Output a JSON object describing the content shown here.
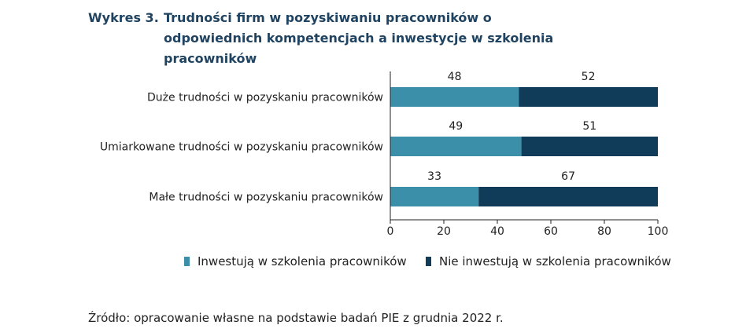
{
  "title": {
    "prefix": "Wykres 3.",
    "text": "Trudności firm w pozyskiwaniu pracowników o odpowiednich kompetencjach a inwestycje w szkolenia pracowników"
  },
  "source": "Źródło: opracowanie własne na podstawie badań PIE z grudnia 2022 r.",
  "colors": {
    "invest": "#3b8fa9",
    "not_invest": "#103c5a"
  },
  "chart_data": {
    "type": "bar",
    "orientation": "horizontal",
    "stacked": true,
    "categories": [
      "Duże trudności w pozyskaniu pracowników",
      "Umiarkowane trudności w pozyskaniu pracowników",
      "Małe trudności w pozyskaniu pracowników"
    ],
    "series": [
      {
        "name": "Inwestują w szkolenia pracowników",
        "values": [
          48,
          49,
          33
        ]
      },
      {
        "name": "Nie inwestują w szkolenia pracowników",
        "values": [
          52,
          51,
          67
        ]
      }
    ],
    "xlim": [
      0,
      100
    ],
    "xticks": [
      0,
      20,
      40,
      60,
      80,
      100
    ],
    "grid": false,
    "legend": "bottom"
  }
}
